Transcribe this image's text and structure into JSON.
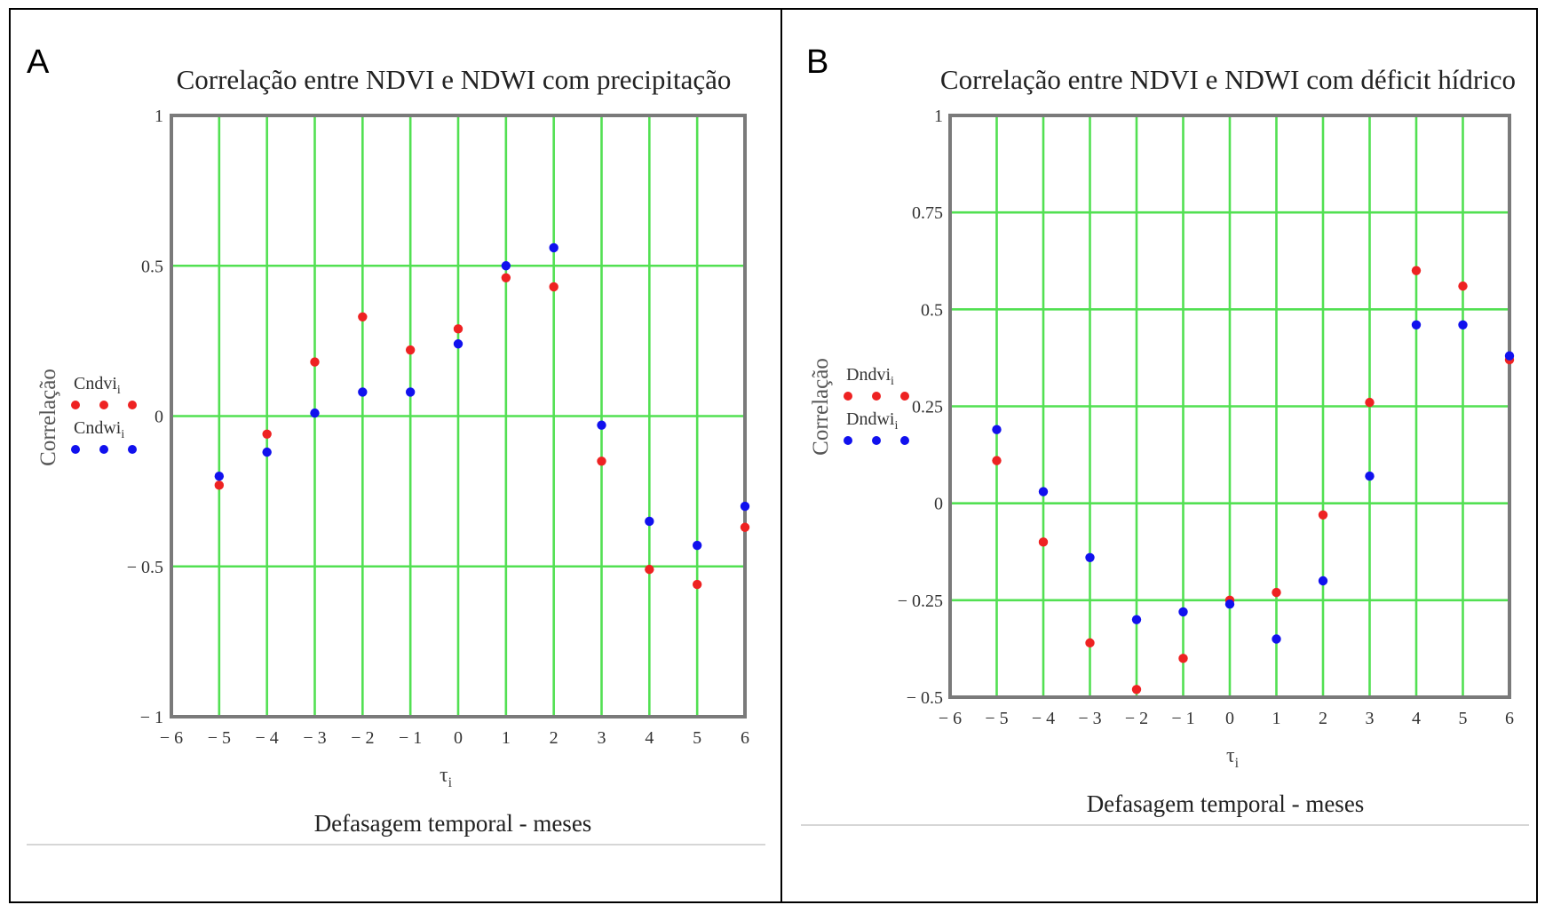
{
  "colors": {
    "ndvi": "#ee2222",
    "ndwi": "#1111ee",
    "grid": "#52e052",
    "frame": "#7a7a7a"
  },
  "chart_data": [
    {
      "type": "scatter",
      "panel_letter": "A",
      "title": "Correlação entre NDVI e NDWI com precipitação",
      "xlabel": "Defasagem temporal - meses",
      "x_var": "τ",
      "x_var_sub": "i",
      "ylabel": "Correlação",
      "xlim": [
        -6,
        6
      ],
      "ylim": [
        -1,
        1
      ],
      "xticks": [
        -6,
        -5,
        -4,
        -3,
        -2,
        -1,
        0,
        1,
        2,
        3,
        4,
        5,
        6
      ],
      "xtick_labels": [
        "− 6",
        "− 5",
        "− 4",
        "− 3",
        "− 2",
        "− 1",
        "0",
        "1",
        "2",
        "3",
        "4",
        "5",
        "6"
      ],
      "yticks": [
        -1,
        -0.5,
        0,
        0.5,
        1
      ],
      "ytick_labels": [
        "− 1",
        "− 0.5",
        "0",
        "0.5",
        "1"
      ],
      "grid": true,
      "legend_position": "left",
      "series": [
        {
          "name": "Cndvi",
          "name_sub": "i",
          "color": "red",
          "x": [
            -5,
            -4,
            -3,
            -2,
            -1,
            0,
            1,
            2,
            3,
            4,
            5,
            6
          ],
          "y": [
            -0.23,
            -0.06,
            0.18,
            0.33,
            0.22,
            0.29,
            0.46,
            0.43,
            -0.15,
            -0.51,
            -0.56,
            -0.37
          ]
        },
        {
          "name": "Cndwi",
          "name_sub": "i",
          "color": "blue",
          "x": [
            -5,
            -4,
            -3,
            -2,
            -1,
            0,
            1,
            2,
            3,
            4,
            5,
            6
          ],
          "y": [
            -0.2,
            -0.12,
            0.01,
            0.08,
            0.08,
            0.24,
            0.5,
            0.56,
            -0.03,
            -0.35,
            -0.43,
            -0.3
          ]
        }
      ]
    },
    {
      "type": "scatter",
      "panel_letter": "B",
      "title": "Correlação entre NDVI e NDWI com déficit hídrico",
      "xlabel": "Defasagem temporal - meses",
      "x_var": "τ",
      "x_var_sub": "i",
      "ylabel": "Correlação",
      "xlim": [
        -6,
        6
      ],
      "ylim": [
        -0.5,
        1
      ],
      "xticks": [
        -6,
        -5,
        -4,
        -3,
        -2,
        -1,
        0,
        1,
        2,
        3,
        4,
        5,
        6
      ],
      "xtick_labels": [
        "− 6",
        "− 5",
        "− 4",
        "− 3",
        "− 2",
        "− 1",
        "0",
        "1",
        "2",
        "3",
        "4",
        "5",
        "6"
      ],
      "yticks": [
        -0.5,
        -0.25,
        0,
        0.25,
        0.5,
        0.75,
        1
      ],
      "ytick_labels": [
        "− 0.5",
        "− 0.25",
        "0",
        "0.25",
        "0.5",
        "0.75",
        "1"
      ],
      "grid": true,
      "legend_position": "left",
      "series": [
        {
          "name": "Dndvi",
          "name_sub": "i",
          "color": "red",
          "x": [
            -5,
            -4,
            -3,
            -2,
            -1,
            0,
            1,
            2,
            3,
            4,
            5,
            6
          ],
          "y": [
            0.11,
            -0.1,
            -0.36,
            -0.48,
            -0.4,
            -0.25,
            -0.23,
            -0.03,
            0.26,
            0.6,
            0.56,
            0.37
          ]
        },
        {
          "name": "Dndwi",
          "name_sub": "i",
          "color": "blue",
          "x": [
            -5,
            -4,
            -3,
            -2,
            -1,
            0,
            1,
            2,
            3,
            4,
            5,
            6
          ],
          "y": [
            0.19,
            0.03,
            -0.14,
            -0.3,
            -0.28,
            -0.26,
            -0.35,
            -0.2,
            0.07,
            0.46,
            0.46,
            0.38
          ]
        }
      ]
    }
  ]
}
